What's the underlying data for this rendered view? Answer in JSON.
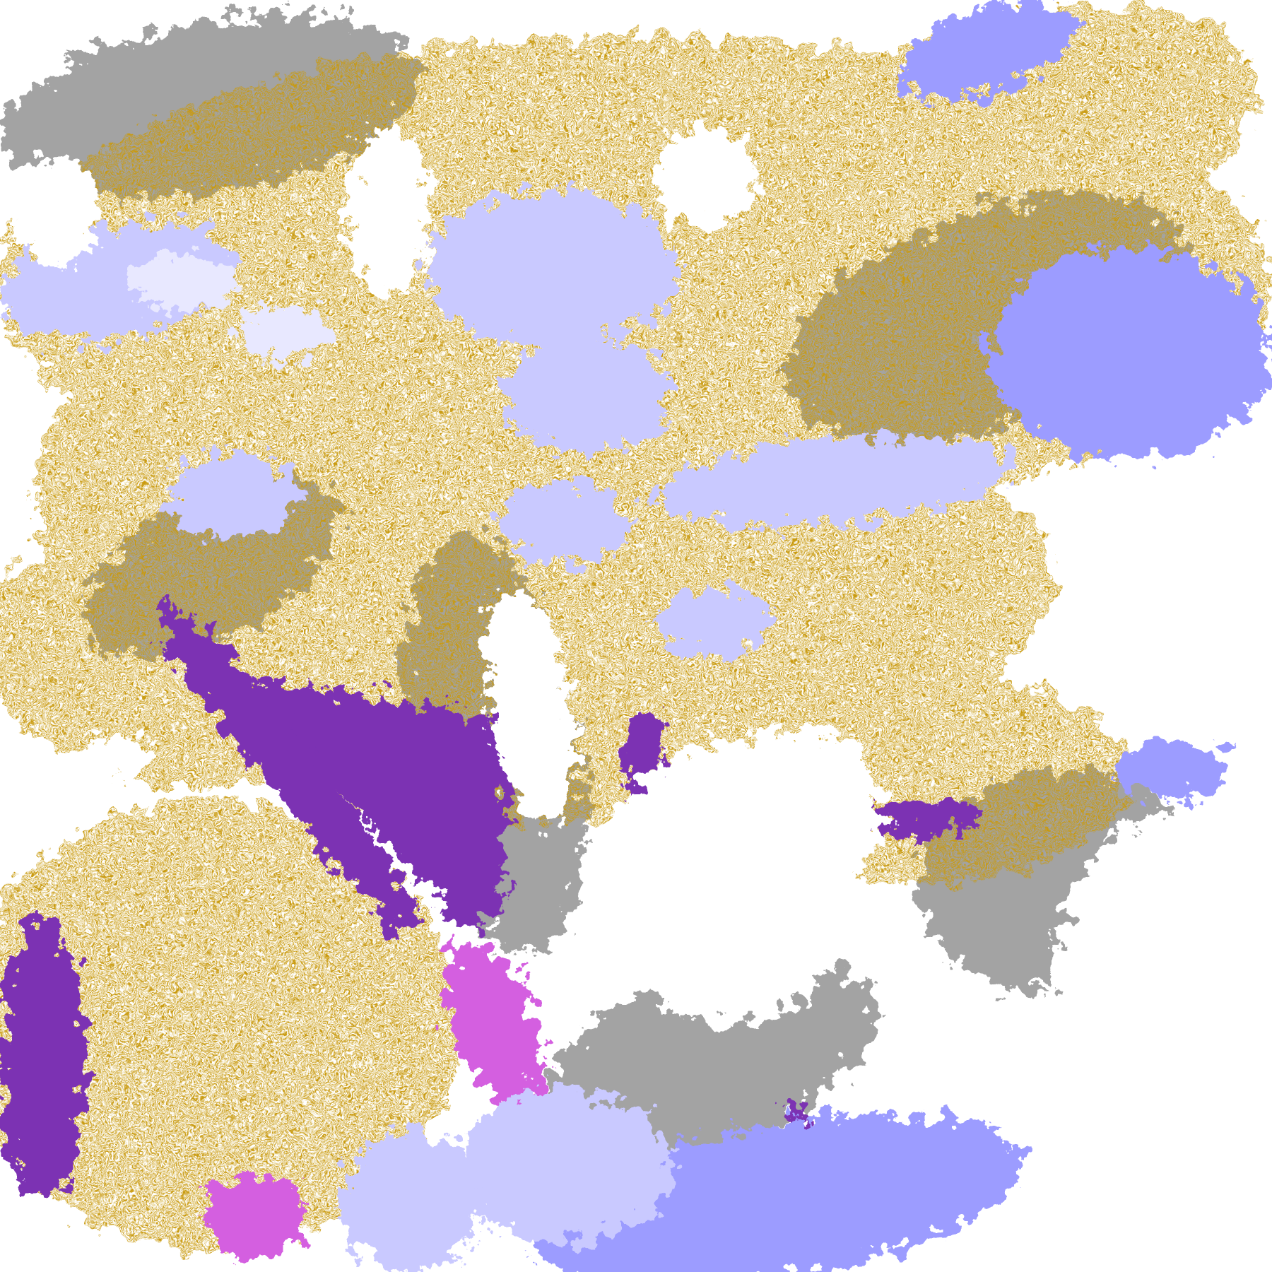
{
  "map": {
    "type": "satellite-classification-image",
    "legend_visible": false,
    "palette": {
      "background": "#ffffff",
      "gold": "#c99a0e",
      "purple": "#7b33b3",
      "magenta": "#d45fe0",
      "lavender_light": "#c9c9ff",
      "lavender_pale": "#e8e8ff",
      "periwinkle": "#9c9cff",
      "gray": "#a3a3a3",
      "gray_dark": "#8a8a8a"
    }
  }
}
